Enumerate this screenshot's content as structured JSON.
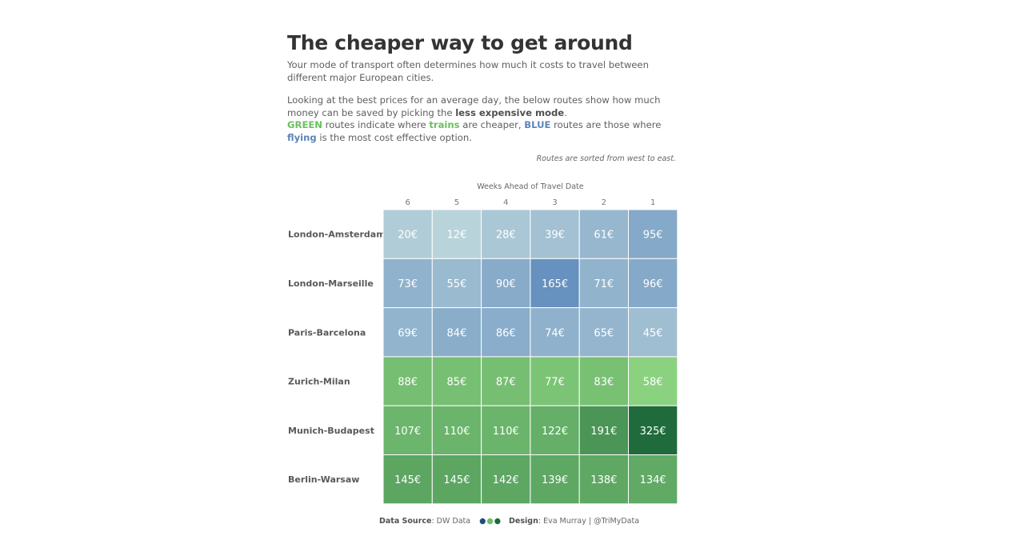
{
  "header": {
    "title": "The cheaper way to get around",
    "intro": "Your mode of transport often determines how much it costs to travel between different major European cities.",
    "para2_a": "Looking at the best prices for an average day, the below routes show how much money can be saved by picking the ",
    "para2_bold": "less expensive mode",
    "para2_end": ".",
    "green_word": "GREEN",
    "green_mid": " routes indicate where ",
    "trains_word": "trains",
    "green_tail": " are cheaper, ",
    "blue_word": "BLUE",
    "blue_mid": " routes are those where ",
    "flying_word": "flying",
    "blue_tail": " is the most cost effective option.",
    "sort_note": "Routes are sorted from west to east."
  },
  "colors": {
    "flight_scale": [
      "#b9d3da",
      "#6791be"
    ],
    "train_scale": [
      "#8ad27f",
      "#1f6b3b"
    ],
    "green_text": "#6abf5e",
    "blue_text": "#5b86b8"
  },
  "chart_data": {
    "type": "heatmap",
    "xlabel": "Weeks Ahead of Travel Date",
    "categories": [
      "6",
      "5",
      "4",
      "3",
      "2",
      "1"
    ],
    "rows": [
      {
        "route": "London-Amsterdam",
        "mode": "flying",
        "values": [
          20,
          12,
          28,
          39,
          61,
          95
        ]
      },
      {
        "route": "London-Marseille",
        "mode": "flying",
        "values": [
          73,
          55,
          90,
          165,
          71,
          96
        ]
      },
      {
        "route": "Paris-Barcelona",
        "mode": "flying",
        "values": [
          69,
          84,
          86,
          74,
          65,
          45
        ]
      },
      {
        "route": "Zurich-Milan",
        "mode": "trains",
        "values": [
          88,
          85,
          87,
          77,
          83,
          58
        ]
      },
      {
        "route": "Munich-Budapest",
        "mode": "trains",
        "values": [
          107,
          110,
          110,
          122,
          191,
          325
        ]
      },
      {
        "route": "Berlin-Warsaw",
        "mode": "trains",
        "values": [
          145,
          145,
          142,
          139,
          138,
          134
        ]
      }
    ],
    "value_suffix": "€"
  },
  "footer": {
    "source_label": "Data Source",
    "source_value": ": DW Data",
    "dots": "●●●",
    "design_label": "Design",
    "design_value": ": Eva Murray | @TriMyData"
  }
}
